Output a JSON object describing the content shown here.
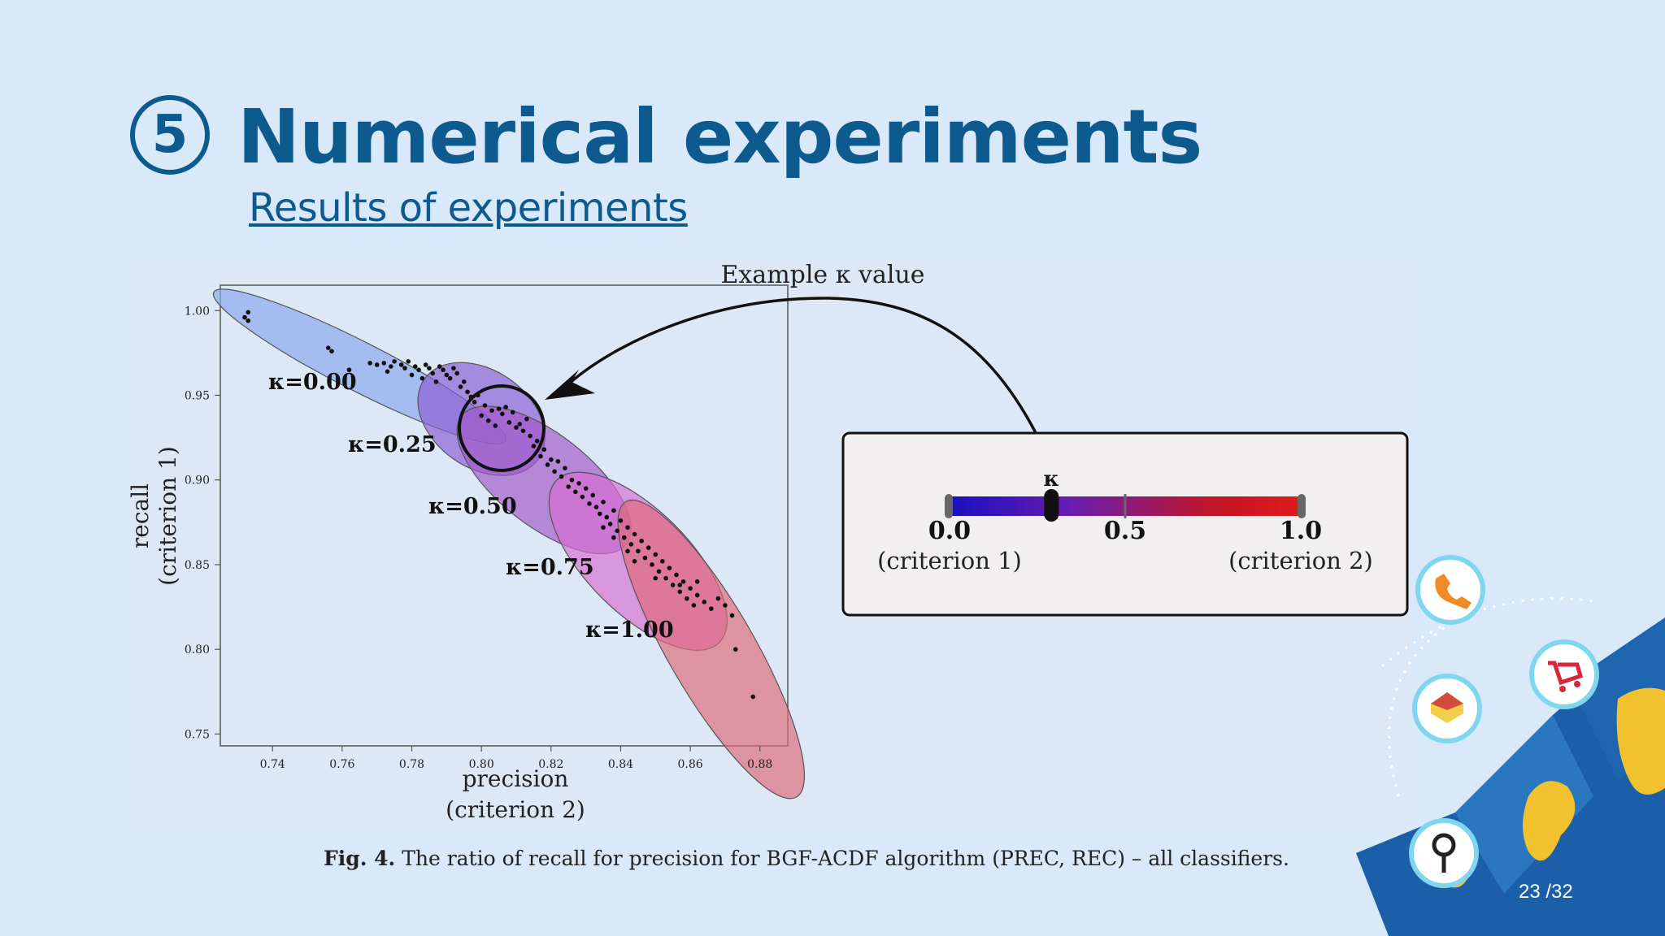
{
  "header": {
    "section_number": "5",
    "title": "Numerical experiments",
    "subtitle": "Results of experiments"
  },
  "figure": {
    "caption_label": "Fig. 4.",
    "caption_text": "The ratio of recall for precision for BGF-ACDF algorithm (PREC, REC) – all classifiers.",
    "annotation": "Example κ value",
    "scale": {
      "symbol": "κ",
      "tick_labels": [
        "0.0",
        "0.5",
        "1.0"
      ],
      "end_labels": [
        "(criterion 1)",
        "(criterion 2)"
      ],
      "marker_value": 0.29,
      "colors": [
        "#1a0fbf",
        "#6a1db0",
        "#c21528",
        "#e01b1b"
      ]
    }
  },
  "footer": {
    "page": "23 /32"
  },
  "icons": [
    "phone-icon",
    "shopping-cart-icon",
    "house-icon",
    "location-pin-icon",
    "world-map-decoration"
  ],
  "chart_data": {
    "type": "scatter",
    "xlabel": "precision",
    "xlabel2": "(criterion 2)",
    "ylabel": "recall",
    "ylabel2": "(criterion 1)",
    "xlim": [
      0.725,
      0.888
    ],
    "ylim": [
      0.743,
      1.015
    ],
    "xticks": [
      "0.74",
      "0.76",
      "0.78",
      "0.80",
      "0.82",
      "0.84",
      "0.86",
      "0.88"
    ],
    "yticks": [
      "0.75",
      "0.80",
      "0.85",
      "0.90",
      "0.95",
      "1.00"
    ],
    "groups": [
      {
        "name": "κ=0.00",
        "color": "#8aa6ef",
        "ellipse": {
          "cx": 0.765,
          "cy": 0.967,
          "rx": 0.047,
          "ry": 0.009,
          "angle_deg": 27
        }
      },
      {
        "name": "κ=0.25",
        "color": "#8b5ed4",
        "ellipse": {
          "cx": 0.8,
          "cy": 0.936,
          "rx": 0.02,
          "ry": 0.018,
          "angle_deg": 35
        }
      },
      {
        "name": "κ=0.50",
        "color": "#a259c9",
        "ellipse": {
          "cx": 0.818,
          "cy": 0.9,
          "rx": 0.03,
          "ry": 0.017,
          "angle_deg": 38
        }
      },
      {
        "name": "κ=0.75",
        "color": "#d66fd0",
        "ellipse": {
          "cx": 0.845,
          "cy": 0.852,
          "rx": 0.033,
          "ry": 0.019,
          "angle_deg": 45
        }
      },
      {
        "name": "κ=1.00",
        "color": "#df6a7a",
        "ellipse": {
          "cx": 0.866,
          "cy": 0.8,
          "rx": 0.049,
          "ry": 0.016,
          "angle_deg": 60
        }
      }
    ],
    "points": [
      [
        0.733,
        0.999
      ],
      [
        0.732,
        0.996
      ],
      [
        0.733,
        0.994
      ],
      [
        0.756,
        0.978
      ],
      [
        0.757,
        0.976
      ],
      [
        0.768,
        0.969
      ],
      [
        0.77,
        0.968
      ],
      [
        0.772,
        0.969
      ],
      [
        0.774,
        0.967
      ],
      [
        0.775,
        0.97
      ],
      [
        0.777,
        0.968
      ],
      [
        0.778,
        0.966
      ],
      [
        0.779,
        0.97
      ],
      [
        0.781,
        0.967
      ],
      [
        0.782,
        0.965
      ],
      [
        0.784,
        0.968
      ],
      [
        0.785,
        0.966
      ],
      [
        0.786,
        0.963
      ],
      [
        0.788,
        0.967
      ],
      [
        0.789,
        0.965
      ],
      [
        0.79,
        0.962
      ],
      [
        0.792,
        0.966
      ],
      [
        0.793,
        0.963
      ],
      [
        0.78,
        0.962
      ],
      [
        0.783,
        0.96
      ],
      [
        0.787,
        0.958
      ],
      [
        0.762,
        0.965
      ],
      [
        0.773,
        0.964
      ],
      [
        0.791,
        0.96
      ],
      [
        0.795,
        0.958
      ],
      [
        0.794,
        0.955
      ],
      [
        0.796,
        0.952
      ],
      [
        0.797,
        0.949
      ],
      [
        0.799,
        0.95
      ],
      [
        0.798,
        0.946
      ],
      [
        0.801,
        0.944
      ],
      [
        0.803,
        0.941
      ],
      [
        0.805,
        0.942
      ],
      [
        0.806,
        0.939
      ],
      [
        0.807,
        0.943
      ],
      [
        0.809,
        0.94
      ],
      [
        0.8,
        0.938
      ],
      [
        0.802,
        0.935
      ],
      [
        0.804,
        0.932
      ],
      [
        0.808,
        0.934
      ],
      [
        0.81,
        0.931
      ],
      [
        0.812,
        0.929
      ],
      [
        0.811,
        0.933
      ],
      [
        0.813,
        0.936
      ],
      [
        0.814,
        0.926
      ],
      [
        0.816,
        0.923
      ],
      [
        0.815,
        0.92
      ],
      [
        0.818,
        0.918
      ],
      [
        0.817,
        0.914
      ],
      [
        0.82,
        0.912
      ],
      [
        0.819,
        0.909
      ],
      [
        0.822,
        0.911
      ],
      [
        0.821,
        0.905
      ],
      [
        0.824,
        0.907
      ],
      [
        0.823,
        0.902
      ],
      [
        0.826,
        0.9
      ],
      [
        0.825,
        0.896
      ],
      [
        0.828,
        0.898
      ],
      [
        0.827,
        0.893
      ],
      [
        0.83,
        0.895
      ],
      [
        0.829,
        0.89
      ],
      [
        0.832,
        0.891
      ],
      [
        0.831,
        0.886
      ],
      [
        0.833,
        0.884
      ],
      [
        0.835,
        0.887
      ],
      [
        0.834,
        0.88
      ],
      [
        0.836,
        0.878
      ],
      [
        0.838,
        0.882
      ],
      [
        0.837,
        0.874
      ],
      [
        0.84,
        0.876
      ],
      [
        0.839,
        0.87
      ],
      [
        0.842,
        0.872
      ],
      [
        0.841,
        0.866
      ],
      [
        0.844,
        0.868
      ],
      [
        0.843,
        0.862
      ],
      [
        0.846,
        0.864
      ],
      [
        0.845,
        0.858
      ],
      [
        0.848,
        0.86
      ],
      [
        0.847,
        0.854
      ],
      [
        0.85,
        0.856
      ],
      [
        0.849,
        0.85
      ],
      [
        0.852,
        0.852
      ],
      [
        0.851,
        0.846
      ],
      [
        0.854,
        0.848
      ],
      [
        0.853,
        0.842
      ],
      [
        0.856,
        0.844
      ],
      [
        0.855,
        0.838
      ],
      [
        0.858,
        0.84
      ],
      [
        0.857,
        0.834
      ],
      [
        0.86,
        0.836
      ],
      [
        0.859,
        0.83
      ],
      [
        0.862,
        0.832
      ],
      [
        0.861,
        0.826
      ],
      [
        0.864,
        0.828
      ],
      [
        0.866,
        0.824
      ],
      [
        0.868,
        0.83
      ],
      [
        0.87,
        0.826
      ],
      [
        0.872,
        0.82
      ],
      [
        0.873,
        0.8
      ],
      [
        0.878,
        0.772
      ],
      [
        0.835,
        0.872
      ],
      [
        0.838,
        0.866
      ],
      [
        0.842,
        0.858
      ],
      [
        0.844,
        0.852
      ],
      [
        0.85,
        0.842
      ],
      [
        0.857,
        0.838
      ],
      [
        0.862,
        0.84
      ]
    ]
  }
}
